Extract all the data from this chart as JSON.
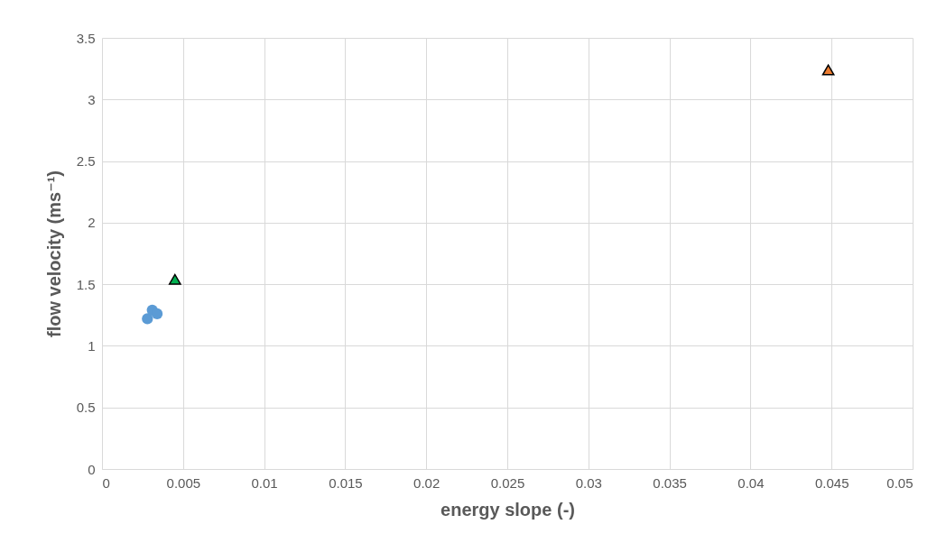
{
  "chart_data": {
    "type": "scatter",
    "xlabel": "energy slope (-)",
    "ylabel": "flow velocity (ms⁻¹)",
    "xlim": [
      0,
      0.05
    ],
    "xticks": [
      0,
      0.005,
      0.01,
      0.015,
      0.02,
      0.025,
      0.03,
      0.035,
      0.04,
      0.045,
      0.05
    ],
    "ylim": [
      0,
      3.5
    ],
    "yticks": [
      0,
      0.5,
      1,
      1.5,
      2,
      2.5,
      3,
      3.5
    ],
    "grid": true,
    "series": [
      {
        "color": "#5b9bd5",
        "marker": "circle",
        "x": [
          0.0028,
          0.0031,
          0.0034
        ],
        "values": [
          1.22,
          1.29,
          1.26
        ]
      },
      {
        "color": "#00b050",
        "marker": "triangle",
        "x": [
          0.0045
        ],
        "values": [
          1.54
        ]
      },
      {
        "color": "#ed7d31",
        "marker": "triangle",
        "x": [
          0.0448
        ],
        "values": [
          3.24
        ]
      }
    ]
  }
}
